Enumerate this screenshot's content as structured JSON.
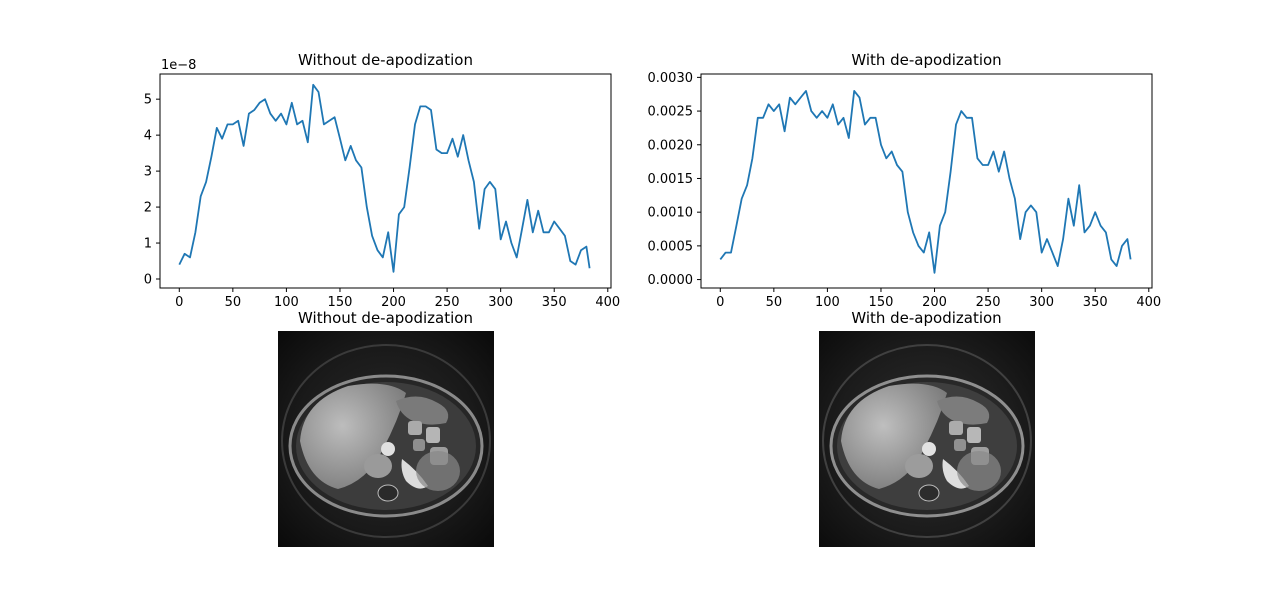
{
  "chart_data": [
    {
      "type": "line",
      "title": "Without de-apodization",
      "xlabel": "",
      "ylabel": "",
      "xlim": [
        -18,
        403
      ],
      "ylim": [
        -0.25,
        5.7
      ],
      "offset_label": "1e−8",
      "xticks": [
        0,
        50,
        100,
        150,
        200,
        250,
        300,
        350,
        400
      ],
      "xtick_labels": [
        "0",
        "50",
        "100",
        "150",
        "200",
        "250",
        "300",
        "350",
        "400"
      ],
      "yticks": [
        0,
        1,
        2,
        3,
        4,
        5
      ],
      "ytick_labels": [
        "0",
        "1",
        "2",
        "3",
        "4",
        "5"
      ],
      "color": "#1f77b4",
      "series": [
        {
          "x": [
            0,
            5,
            10,
            15,
            20,
            25,
            30,
            35,
            40,
            45,
            50,
            55,
            60,
            65,
            70,
            75,
            80,
            85,
            90,
            95,
            100,
            105,
            110,
            115,
            120,
            125,
            130,
            135,
            140,
            145,
            150,
            155,
            160,
            165,
            170,
            175,
            180,
            185,
            190,
            195,
            200,
            205,
            210,
            215,
            220,
            225,
            230,
            235,
            240,
            245,
            250,
            255,
            260,
            265,
            270,
            275,
            280,
            285,
            290,
            295,
            300,
            305,
            310,
            315,
            320,
            325,
            330,
            335,
            340,
            345,
            350,
            355,
            360,
            365,
            370,
            375,
            380,
            383
          ],
          "y": [
            0.4,
            0.7,
            0.6,
            1.3,
            2.3,
            2.7,
            3.4,
            4.2,
            3.9,
            4.3,
            4.3,
            4.4,
            3.7,
            4.6,
            4.7,
            4.9,
            5.0,
            4.6,
            4.4,
            4.6,
            4.3,
            4.9,
            4.3,
            4.4,
            3.8,
            5.4,
            5.2,
            4.3,
            4.4,
            4.5,
            3.9,
            3.3,
            3.7,
            3.3,
            3.1,
            2.0,
            1.2,
            0.8,
            0.6,
            1.3,
            0.2,
            1.8,
            2.0,
            3.1,
            4.3,
            4.8,
            4.8,
            4.7,
            3.6,
            3.5,
            3.5,
            3.9,
            3.4,
            4.0,
            3.3,
            2.7,
            1.4,
            2.5,
            2.7,
            2.5,
            1.1,
            1.6,
            1.0,
            0.6,
            1.4,
            2.2,
            1.3,
            1.9,
            1.3,
            1.3,
            1.6,
            1.4,
            1.2,
            0.5,
            0.4,
            0.8,
            0.9,
            0.3
          ]
        }
      ]
    },
    {
      "type": "line",
      "title": "With de-apodization",
      "xlabel": "",
      "ylabel": "",
      "xlim": [
        -18,
        403
      ],
      "ylim": [
        -0.000125,
        0.00305
      ],
      "xticks": [
        0,
        50,
        100,
        150,
        200,
        250,
        300,
        350,
        400
      ],
      "xtick_labels": [
        "0",
        "50",
        "100",
        "150",
        "200",
        "250",
        "300",
        "350",
        "400"
      ],
      "yticks": [
        0,
        0.0005,
        0.001,
        0.0015,
        0.002,
        0.0025,
        0.003
      ],
      "ytick_labels": [
        "0.0000",
        "0.0005",
        "0.0010",
        "0.0015",
        "0.0020",
        "0.0025",
        "0.0030"
      ],
      "color": "#1f77b4",
      "series": [
        {
          "x": [
            0,
            5,
            10,
            15,
            20,
            25,
            30,
            35,
            40,
            45,
            50,
            55,
            60,
            65,
            70,
            75,
            80,
            85,
            90,
            95,
            100,
            105,
            110,
            115,
            120,
            125,
            130,
            135,
            140,
            145,
            150,
            155,
            160,
            165,
            170,
            175,
            180,
            185,
            190,
            195,
            200,
            205,
            210,
            215,
            220,
            225,
            230,
            235,
            240,
            245,
            250,
            255,
            260,
            265,
            270,
            275,
            280,
            285,
            290,
            295,
            300,
            305,
            310,
            315,
            320,
            325,
            330,
            335,
            340,
            345,
            350,
            355,
            360,
            365,
            370,
            375,
            380,
            383
          ],
          "y": [
            0.0003,
            0.0004,
            0.0004,
            0.0008,
            0.0012,
            0.0014,
            0.0018,
            0.0024,
            0.0024,
            0.0026,
            0.0025,
            0.0026,
            0.0022,
            0.0027,
            0.0026,
            0.0027,
            0.0028,
            0.0025,
            0.0024,
            0.0025,
            0.0024,
            0.0026,
            0.0023,
            0.0024,
            0.0021,
            0.0028,
            0.0027,
            0.0023,
            0.0024,
            0.0024,
            0.002,
            0.0018,
            0.0019,
            0.0017,
            0.0016,
            0.001,
            0.0007,
            0.0005,
            0.0004,
            0.0007,
            0.0001,
            0.0008,
            0.001,
            0.0016,
            0.0023,
            0.0025,
            0.0024,
            0.0024,
            0.0018,
            0.0017,
            0.0017,
            0.0019,
            0.0016,
            0.0019,
            0.0015,
            0.0012,
            0.0006,
            0.001,
            0.0011,
            0.001,
            0.0004,
            0.0006,
            0.0004,
            0.0002,
            0.0006,
            0.0012,
            0.0008,
            0.0014,
            0.0007,
            0.0008,
            0.001,
            0.0008,
            0.0007,
            0.0003,
            0.0002,
            0.0005,
            0.0006,
            0.0003
          ]
        }
      ]
    }
  ],
  "images": [
    {
      "title": "Without de-apodization",
      "content": "grayscale axial abdominal MRI reconstruction"
    },
    {
      "title": "With de-apodization",
      "content": "grayscale axial abdominal MRI reconstruction"
    }
  ]
}
